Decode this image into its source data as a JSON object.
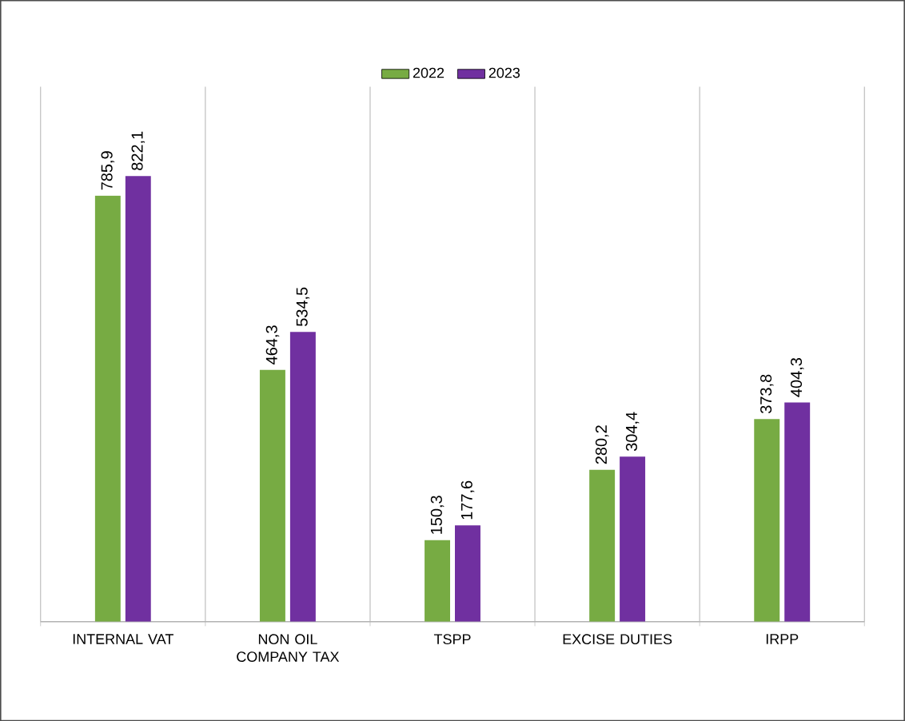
{
  "chart_data": {
    "type": "bar",
    "categories": [
      "INTERNAL VAT",
      "NON OIL COMPANY TAX",
      "TSPP",
      "EXCISE DUTIES",
      "IRPP"
    ],
    "series": [
      {
        "name": "2022",
        "color": "#77ab43",
        "values": [
          785.9,
          464.3,
          150.3,
          280.2,
          373.8
        ],
        "value_labels": [
          "785,9",
          "464,3",
          "150,3",
          "280,2",
          "373,8"
        ]
      },
      {
        "name": "2023",
        "color": "#7030a0",
        "values": [
          822.1,
          534.5,
          177.6,
          304.4,
          404.3
        ],
        "value_labels": [
          "822,1",
          "534,5",
          "177,6",
          "304,4",
          "404,3"
        ]
      }
    ],
    "grid": "x",
    "legend": "top"
  }
}
